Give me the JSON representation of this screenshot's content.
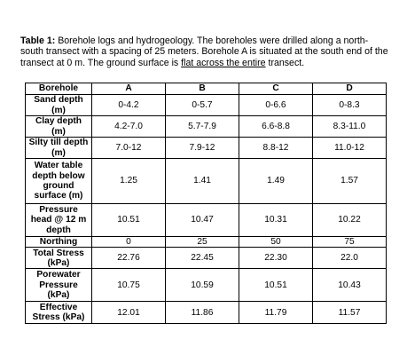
{
  "caption": {
    "lead": "Table 1:",
    "text_before_underline": " Borehole logs and hydrogeology. The boreholes were drilled along a north-south transect with a spacing of 25 meters. Borehole A is situated at the south end of the transect at 0 m. The ground surface is ",
    "underlined": "flat across the entire",
    "text_after_underline": " transect."
  },
  "table": {
    "header": [
      "Borehole",
      "A",
      "B",
      "C",
      "D"
    ],
    "rows": [
      {
        "label": "Sand depth (m)",
        "values": [
          "0-4.2",
          "0-5.7",
          "0-6.6",
          "0-8.3"
        ]
      },
      {
        "label": "Clay depth (m)",
        "values": [
          "4.2-7.0",
          "5.7-7.9",
          "6.6-8.8",
          "8.3-11.0"
        ]
      },
      {
        "label": "Silty till depth (m)",
        "values": [
          "7.0-12",
          "7.9-12",
          "8.8-12",
          "11.0-12"
        ]
      },
      {
        "label": "Water table depth below ground surface (m)",
        "values": [
          "1.25",
          "1.41",
          "1.49",
          "1.57"
        ]
      },
      {
        "label": "Pressure head @ 12 m depth",
        "values": [
          "10.51",
          "10.47",
          "10.31",
          "10.22"
        ]
      },
      {
        "label": "Northing",
        "values": [
          "0",
          "25",
          "50",
          "75"
        ]
      },
      {
        "label": "Total Stress (kPa)",
        "values": [
          "22.76",
          "22.45",
          "22.30",
          "22.0"
        ]
      },
      {
        "label": "Porewater Pressure (kPa)",
        "values": [
          "10.75",
          "10.59",
          "10.51",
          "10.43"
        ]
      },
      {
        "label": "Effective Stress (kPa)",
        "values": [
          "12.01",
          "11.86",
          "11.79",
          "11.57"
        ]
      }
    ]
  }
}
